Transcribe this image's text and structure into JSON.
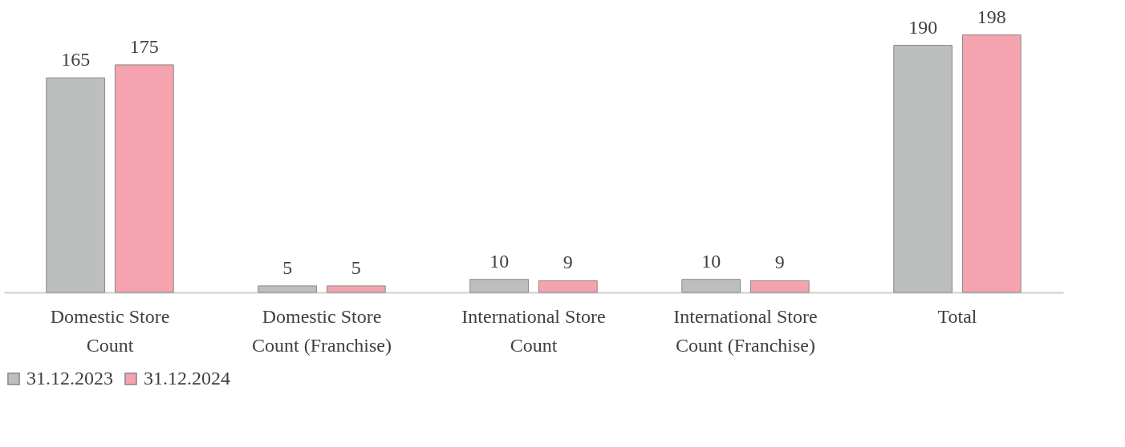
{
  "chart_data": {
    "type": "bar",
    "categories": [
      "Domestic Store Count",
      "Domestic Store Count (Franchise)",
      "International Store Count",
      "International Store Count (Franchise)",
      "Total"
    ],
    "series": [
      {
        "name": "31.12.2023",
        "color": "#bcbfbe",
        "values": [
          165,
          5,
          10,
          10,
          190
        ]
      },
      {
        "name": "31.12.2024",
        "color": "#f5a3ae",
        "values": [
          175,
          5,
          9,
          9,
          198
        ]
      }
    ],
    "data_labels": true,
    "legend": "bottom",
    "grid": false
  }
}
